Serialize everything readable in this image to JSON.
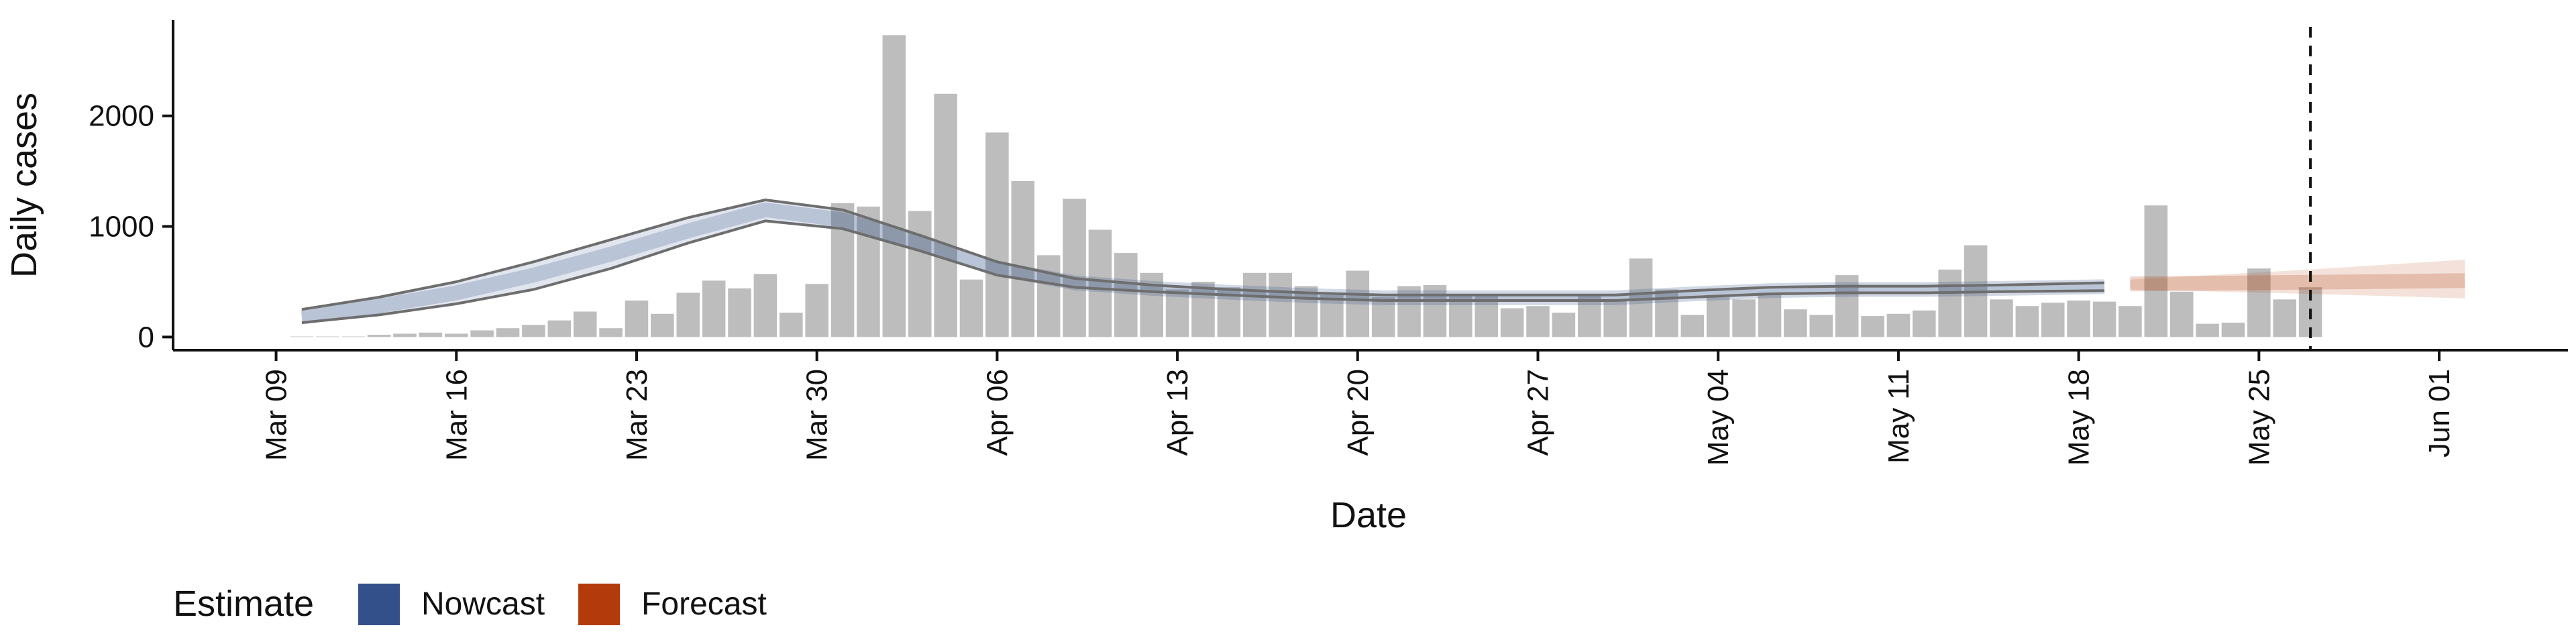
{
  "chart_data": {
    "type": "bar",
    "x_label": "Date",
    "y_label": "Daily cases",
    "legend_title": "Estimate",
    "bar_color": "#bdbdbd",
    "xlim": [
      "Mar 05",
      "Jun 06"
    ],
    "xticks": [
      "Mar 09",
      "Mar 16",
      "Mar 23",
      "Mar 30",
      "Apr 06",
      "Apr 13",
      "Apr 20",
      "Apr 27",
      "May 04",
      "May 11",
      "May 18",
      "May 25",
      "Jun 01"
    ],
    "ylim": [
      -119,
      2866
    ],
    "yticks": [
      0,
      1000,
      2000
    ],
    "reference_line": "May 27",
    "x": [
      "Mar 10",
      "Mar 11",
      "Mar 12",
      "Mar 13",
      "Mar 14",
      "Mar 15",
      "Mar 16",
      "Mar 17",
      "Mar 18",
      "Mar 19",
      "Mar 20",
      "Mar 21",
      "Mar 22",
      "Mar 23",
      "Mar 24",
      "Mar 25",
      "Mar 26",
      "Mar 27",
      "Mar 28",
      "Mar 29",
      "Mar 30",
      "Mar 31",
      "Apr 01",
      "Apr 02",
      "Apr 03",
      "Apr 04",
      "Apr 05",
      "Apr 06",
      "Apr 07",
      "Apr 08",
      "Apr 09",
      "Apr 10",
      "Apr 11",
      "Apr 12",
      "Apr 13",
      "Apr 14",
      "Apr 15",
      "Apr 16",
      "Apr 17",
      "Apr 18",
      "Apr 19",
      "Apr 20",
      "Apr 21",
      "Apr 22",
      "Apr 23",
      "Apr 24",
      "Apr 25",
      "Apr 26",
      "Apr 27",
      "Apr 28",
      "Apr 29",
      "Apr 30",
      "May 01",
      "May 02",
      "May 03",
      "May 04",
      "May 05",
      "May 06",
      "May 07",
      "May 08",
      "May 09",
      "May 10",
      "May 11",
      "May 12",
      "May 13",
      "May 14",
      "May 15",
      "May 16",
      "May 17",
      "May 18",
      "May 19",
      "May 20",
      "May 21",
      "May 22",
      "May 23",
      "May 24",
      "May 25",
      "May 26",
      "May 27"
    ],
    "values": [
      5,
      5,
      5,
      20,
      30,
      40,
      30,
      60,
      80,
      110,
      150,
      230,
      80,
      330,
      210,
      400,
      510,
      440,
      570,
      220,
      480,
      1210,
      1180,
      2730,
      1140,
      2200,
      520,
      1850,
      1410,
      740,
      1250,
      970,
      760,
      580,
      430,
      500,
      450,
      580,
      580,
      460,
      380,
      600,
      360,
      460,
      470,
      380,
      380,
      260,
      280,
      220,
      370,
      330,
      710,
      430,
      200,
      360,
      340,
      400,
      250,
      200,
      560,
      190,
      210,
      240,
      610,
      830,
      340,
      280,
      310,
      330,
      320,
      280,
      1190,
      410,
      120,
      130,
      620,
      340,
      450
    ],
    "estimates": [
      {
        "name": "Nowcast",
        "color": "#34508a",
        "outline": true,
        "x": [
          "Mar 10",
          "Mar 13",
          "Mar 16",
          "Mar 19",
          "Mar 22",
          "Mar 25",
          "Mar 28",
          "Mar 31",
          "Apr 03",
          "Apr 06",
          "Apr 09",
          "Apr 12",
          "Apr 15",
          "Apr 18",
          "Apr 21",
          "Apr 24",
          "Apr 27",
          "Apr 30",
          "May 03",
          "May 06",
          "May 09",
          "May 12",
          "May 15",
          "May 19"
        ],
        "median": [
          180,
          280,
          400,
          560,
          750,
          960,
          1150,
          1060,
          850,
          620,
          490,
          440,
          405,
          375,
          355,
          355,
          355,
          355,
          390,
          420,
          430,
          430,
          440,
          455
        ],
        "lower": [
          130,
          200,
          300,
          430,
          620,
          850,
          1050,
          980,
          780,
          560,
          450,
          410,
          380,
          350,
          330,
          330,
          330,
          330,
          360,
          390,
          400,
          400,
          410,
          420
        ],
        "upper": [
          250,
          360,
          500,
          680,
          880,
          1080,
          1240,
          1150,
          920,
          680,
          530,
          470,
          430,
          400,
          380,
          380,
          380,
          380,
          420,
          450,
          460,
          460,
          470,
          490
        ]
      },
      {
        "name": "Forecast",
        "color": "#b33a0a",
        "outline": false,
        "x": [
          "May 20",
          "May 27",
          "Jun 02"
        ],
        "median": [
          480,
          495,
          510
        ],
        "lower": [
          430,
          390,
          350
        ],
        "upper": [
          520,
          610,
          700
        ]
      }
    ]
  }
}
